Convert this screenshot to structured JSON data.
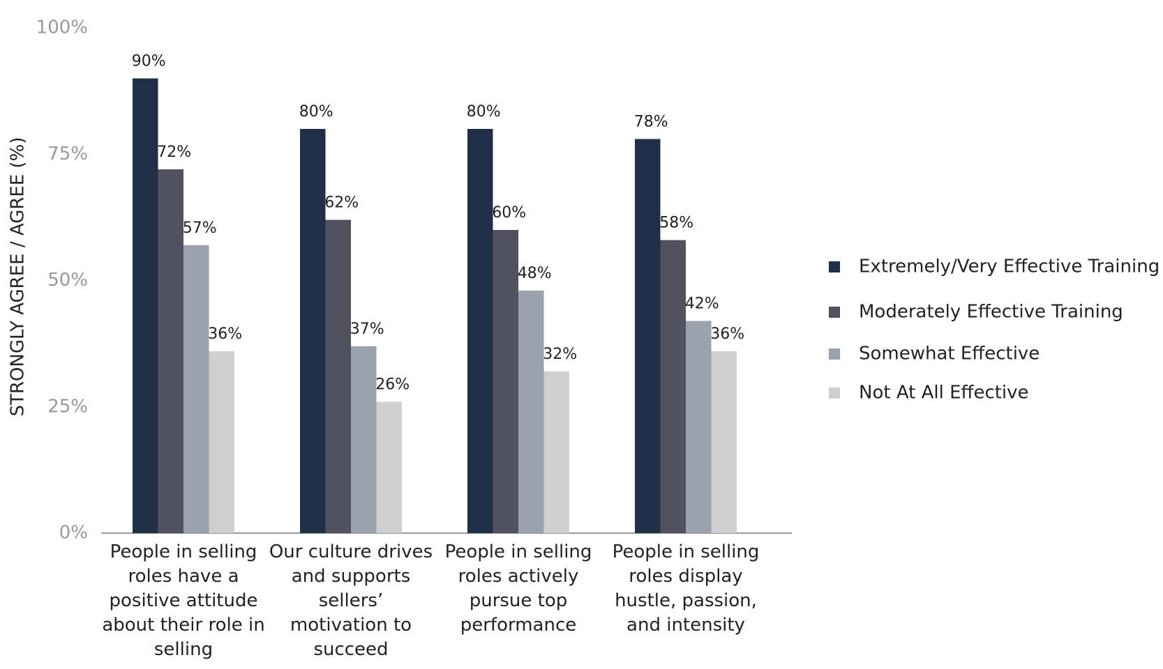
{
  "chart_data": {
    "type": "bar",
    "y_label": "STRONGLY AGREE / AGREE (%)",
    "categories": [
      "People in selling roles have a positive attitude about their role in selling",
      "Our culture drives and supports sellers’ motivation to succeed",
      "People in selling roles actively pursue top performance",
      "People in selling roles display hustle, passion, and intensity"
    ],
    "series": [
      {
        "name": "Extremely/Very Effective Training",
        "color": "#1f2f45",
        "values": [
          90,
          80,
          80,
          78
        ],
        "value_labels": [
          "90%",
          "80%",
          "80%",
          "78%"
        ]
      },
      {
        "name": "Moderately Effective Training",
        "color": "#52525e",
        "values": [
          72,
          62,
          60,
          58
        ],
        "value_labels": [
          "72%",
          "62%",
          "60%",
          "58%"
        ]
      },
      {
        "name": "Somewhat Effective",
        "color": "#9aa2ab",
        "values": [
          57,
          37,
          48,
          42
        ],
        "value_labels": [
          "57%",
          "37%",
          "48%",
          "42%"
        ]
      },
      {
        "name": "Not At All Effective",
        "color": "#cfcfcf",
        "values": [
          36,
          26,
          32,
          36
        ],
        "value_labels": [
          "36%",
          "26%",
          "32%",
          "36%"
        ]
      }
    ],
    "ylim": [
      0,
      100
    ],
    "yticks": [
      {
        "value": 0,
        "label": "0%"
      },
      {
        "value": 25,
        "label": "25%"
      },
      {
        "value": 50,
        "label": "50%"
      },
      {
        "value": 75,
        "label": "75%"
      },
      {
        "value": 100,
        "label": "100%"
      }
    ],
    "legend": "right"
  }
}
